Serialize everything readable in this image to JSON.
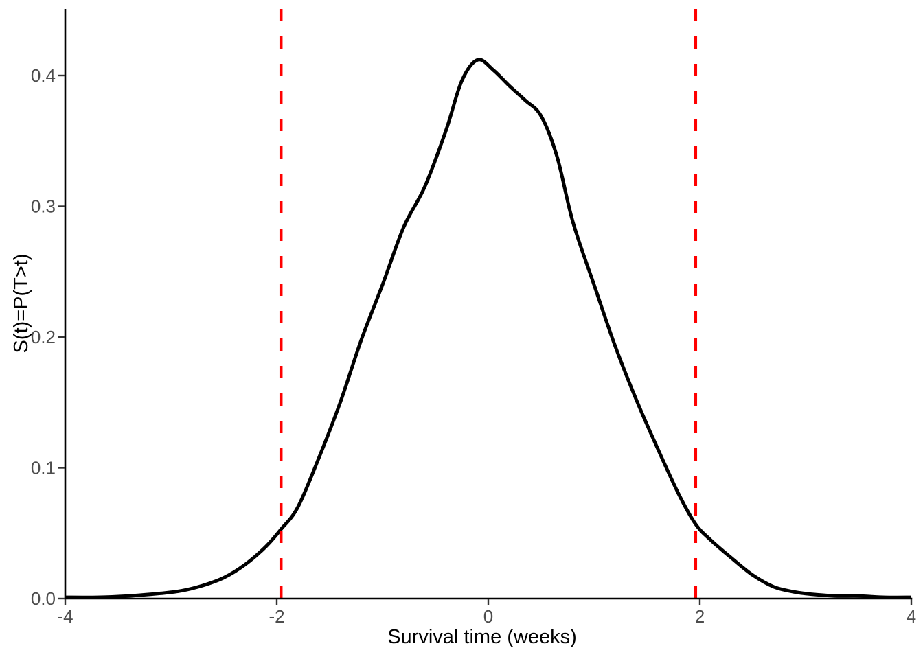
{
  "chart_data": {
    "type": "line",
    "subtype": "density",
    "title": "",
    "xlabel": "Survival time (weeks)",
    "ylabel": "S(t)=P(T>t)",
    "xlim": [
      -4,
      4
    ],
    "ylim": [
      0,
      0.45
    ],
    "grid": false,
    "legend": "none",
    "x_ticks": {
      "values": [
        -4,
        -2,
        0,
        2,
        4
      ],
      "labels": [
        "-4",
        "-2",
        "0",
        "2",
        "4"
      ]
    },
    "y_ticks": {
      "values": [
        0.0,
        0.1,
        0.2,
        0.3,
        0.4
      ],
      "labels": [
        "0.0",
        "0.1",
        "0.2",
        "0.3",
        "0.4"
      ]
    },
    "series": [
      {
        "name": "survival-time-density",
        "color": "#000000",
        "style": "solid",
        "linewidth": 5,
        "points": [
          [
            -4.0,
            0.001
          ],
          [
            -3.7,
            0.001
          ],
          [
            -3.4,
            0.002
          ],
          [
            -3.1,
            0.004
          ],
          [
            -2.9,
            0.006
          ],
          [
            -2.7,
            0.01
          ],
          [
            -2.5,
            0.016
          ],
          [
            -2.3,
            0.026
          ],
          [
            -2.1,
            0.04
          ],
          [
            -1.96,
            0.053
          ],
          [
            -1.8,
            0.07
          ],
          [
            -1.6,
            0.108
          ],
          [
            -1.4,
            0.15
          ],
          [
            -1.2,
            0.198
          ],
          [
            -1.0,
            0.24
          ],
          [
            -0.8,
            0.284
          ],
          [
            -0.6,
            0.315
          ],
          [
            -0.4,
            0.358
          ],
          [
            -0.25,
            0.396
          ],
          [
            -0.1,
            0.412
          ],
          [
            0.05,
            0.404
          ],
          [
            0.2,
            0.392
          ],
          [
            0.35,
            0.381
          ],
          [
            0.5,
            0.369
          ],
          [
            0.65,
            0.338
          ],
          [
            0.8,
            0.288
          ],
          [
            1.0,
            0.24
          ],
          [
            1.2,
            0.193
          ],
          [
            1.4,
            0.152
          ],
          [
            1.6,
            0.115
          ],
          [
            1.8,
            0.08
          ],
          [
            1.96,
            0.057
          ],
          [
            2.1,
            0.045
          ],
          [
            2.3,
            0.031
          ],
          [
            2.5,
            0.018
          ],
          [
            2.7,
            0.009
          ],
          [
            2.9,
            0.005
          ],
          [
            3.1,
            0.003
          ],
          [
            3.3,
            0.002
          ],
          [
            3.5,
            0.002
          ],
          [
            3.75,
            0.001
          ],
          [
            4.0,
            0.001
          ]
        ]
      }
    ],
    "vlines": [
      {
        "x": -1.96,
        "color": "#FF0000",
        "style": "dashed"
      },
      {
        "x": 1.96,
        "color": "#FF0000",
        "style": "dashed"
      }
    ],
    "colors": {
      "curve": "#000000",
      "vline": "#FF0000",
      "axis_line": "#000000",
      "tick_mark": "#333333",
      "tick_label": "#4D4D4D",
      "axis_title": "#000000",
      "background": "#FFFFFF"
    }
  }
}
